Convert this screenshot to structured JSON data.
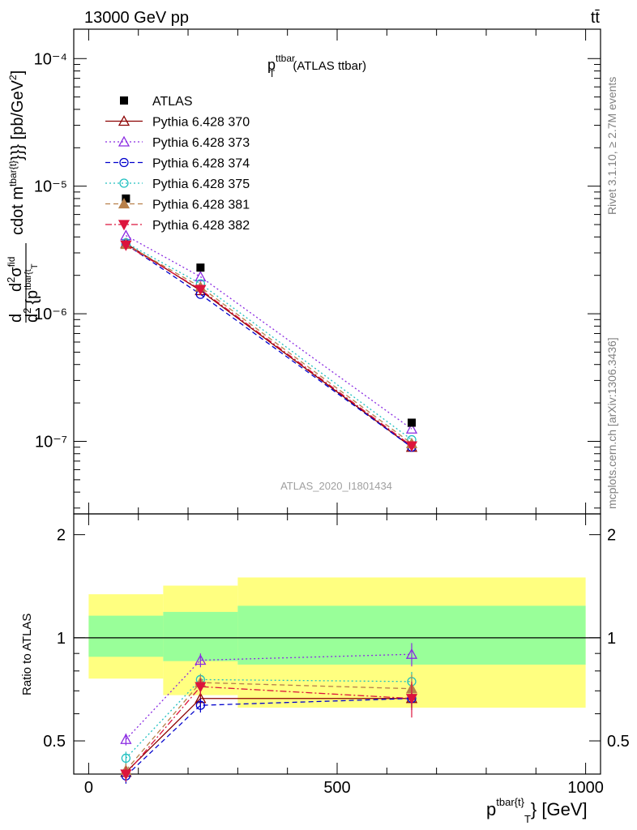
{
  "header": {
    "left": "13000 GeV pp",
    "right": "tt̄"
  },
  "side_labels": {
    "rivet": "Rivet 3.1.10, ≥ 2.7M events",
    "mcplots": "mcplots.cern.ch [arXiv:1306.3436]"
  },
  "colors": {
    "band_yellow": "#ffff80",
    "band_green": "#99ff99",
    "data": "#000000"
  },
  "chart_data": [
    {
      "type": "scatter",
      "title": "p_T^ttbar (ATLAS ttbar)",
      "title_main": "p",
      "title_sup": "ttbar",
      "title_sub": "T",
      "title_rest": "(ATLAS ttbar)",
      "watermark": "ATLAS_2020_I1801434",
      "ylabel": "d d²σ^fid / d² {p_T^tbar{t}} cdot m^tbar{t}}}} [pb/GeV²]",
      "ylabel_parts": {
        "top": "cdot m",
        "top_sup": "tbar{t}",
        "top_end": "}}} [pb/GeV",
        "top_end_sup": "2",
        "top_close": "]",
        "frac_num": "d",
        "frac_num_sup": "2",
        "frac_sigma": "σ",
        "frac_sigma_sup": "fid",
        "frac_den": "d",
        "frac_den_sup": "2",
        "frac_den_rest": "{p",
        "frac_den_rest_sup": "tbar{t",
        "frac_den_rest_sub": "T",
        "lead": "d"
      },
      "xlim": [
        -30,
        1030
      ],
      "ylim": [
        2.7e-08,
        0.00017
      ],
      "yscale": "log",
      "y_tick_labels": [
        "10⁻⁷",
        "10⁻⁶",
        "10⁻⁵",
        "10⁻⁴"
      ],
      "x": [
        75,
        225,
        650
      ],
      "series": [
        {
          "name": "ATLAS",
          "color": "#000000",
          "marker": "square-filled",
          "dash": "none",
          "values": [
            8e-06,
            2.3e-06,
            1.4e-07
          ]
        },
        {
          "name": "Pythia 6.428 370",
          "color": "#8b0000",
          "marker": "triangle-open",
          "dash": "solid",
          "values": [
            3.55e-06,
            1.52e-06,
            9e-08
          ]
        },
        {
          "name": "Pythia 6.428 373",
          "color": "#8a2be2",
          "marker": "triangle-open",
          "dash": "dotted",
          "values": [
            4.1e-06,
            1.95e-06,
            1.25e-07
          ]
        },
        {
          "name": "Pythia 6.428 374",
          "color": "#0000cc",
          "marker": "circle-open",
          "dash": "dashed",
          "values": [
            3.5e-06,
            1.42e-06,
            9e-08
          ]
        },
        {
          "name": "Pythia 6.428 375",
          "color": "#20c0c0",
          "marker": "circle-open",
          "dash": "dotted",
          "values": [
            3.6e-06,
            1.72e-06,
            1.03e-07
          ]
        },
        {
          "name": "Pythia 6.428 381",
          "color": "#b8804a",
          "marker": "triangle-filled",
          "dash": "dashed",
          "values": [
            3.5e-06,
            1.62e-06,
            9.6e-08
          ]
        },
        {
          "name": "Pythia 6.428 382",
          "color": "#dc143c",
          "marker": "triangle-down-filled",
          "dash": "dashdot",
          "values": [
            3.45e-06,
            1.55e-06,
            9.2e-08
          ]
        }
      ]
    },
    {
      "type": "line",
      "ylabel": "Ratio to ATLAS",
      "xlabel": "p_T^tbar{t}} [GeV]",
      "xlabel_parts": {
        "main": "p",
        "sup": "tbar{t}",
        "sub": "T",
        "rest": "} [GeV]"
      },
      "xlim": [
        -30,
        1030
      ],
      "ylim": [
        0.4,
        2.3
      ],
      "yscale": "log",
      "y_ticks": [
        0.5,
        1,
        2
      ],
      "y_tick_labels": [
        "0.5",
        "1",
        "2"
      ],
      "x_ticks": [
        0,
        500,
        1000
      ],
      "x_tick_labels": [
        "0",
        "500",
        "1000"
      ],
      "bands": [
        {
          "x0": 0,
          "x1": 150,
          "green": [
            0.88,
            1.16
          ],
          "yellow": [
            0.76,
            1.34
          ]
        },
        {
          "x0": 150,
          "x1": 300,
          "green": [
            0.855,
            1.19
          ],
          "yellow": [
            0.68,
            1.42
          ]
        },
        {
          "x0": 300,
          "x1": 1000,
          "green": [
            0.835,
            1.24
          ],
          "yellow": [
            0.625,
            1.5
          ]
        }
      ],
      "x": [
        75,
        225,
        650
      ],
      "series": [
        {
          "name": "Pythia 6.428 370",
          "color": "#8b0000",
          "marker": "triangle-open",
          "dash": "solid",
          "values": [
            0.405,
            0.665,
            0.665
          ],
          "err": [
            0.02,
            0.03,
            0.04
          ]
        },
        {
          "name": "Pythia 6.428 373",
          "color": "#8a2be2",
          "marker": "triangle-open",
          "dash": "dotted",
          "values": [
            0.505,
            0.86,
            0.895
          ],
          "err": [
            0.02,
            0.04,
            0.07
          ]
        },
        {
          "name": "Pythia 6.428 374",
          "color": "#0000cc",
          "marker": "circle-open",
          "dash": "dashed",
          "values": [
            0.395,
            0.635,
            0.665
          ],
          "err": [
            0.02,
            0.03,
            0.05
          ]
        },
        {
          "name": "Pythia 6.428 375",
          "color": "#20c0c0",
          "marker": "circle-open",
          "dash": "dotted",
          "values": [
            0.445,
            0.755,
            0.745
          ],
          "err": [
            0.02,
            0.03,
            0.05
          ]
        },
        {
          "name": "Pythia 6.428 381",
          "color": "#b8804a",
          "marker": "triangle-filled",
          "dash": "dashed",
          "values": [
            0.41,
            0.74,
            0.71
          ],
          "err": [
            0.02,
            0.04,
            0.07
          ]
        },
        {
          "name": "Pythia 6.428 382",
          "color": "#dc143c",
          "marker": "triangle-down-filled",
          "dash": "dashdot",
          "values": [
            0.4,
            0.72,
            0.665
          ],
          "err": [
            0.02,
            0.04,
            0.08
          ]
        }
      ]
    }
  ]
}
